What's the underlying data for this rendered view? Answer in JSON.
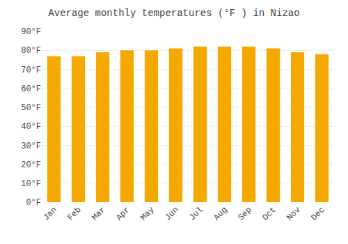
{
  "chart_data": {
    "type": "bar",
    "title": "Average monthly temperatures (°F ) in Nizao",
    "categories": [
      "Jan",
      "Feb",
      "Mar",
      "Apr",
      "May",
      "Jun",
      "Jul",
      "Aug",
      "Sep",
      "Oct",
      "Nov",
      "Dec"
    ],
    "values": [
      77,
      77,
      79,
      80,
      80,
      81,
      82,
      82,
      82,
      81,
      79,
      78
    ],
    "color": "#F5A800",
    "ylim": [
      0,
      90
    ],
    "yticks": [
      {
        "value": 0,
        "label": "0°F"
      },
      {
        "value": 10,
        "label": "10°F"
      },
      {
        "value": 20,
        "label": "20°F"
      },
      {
        "value": 30,
        "label": "30°F"
      },
      {
        "value": 40,
        "label": "40°F"
      },
      {
        "value": 50,
        "label": "50°F"
      },
      {
        "value": 60,
        "label": "60°F"
      },
      {
        "value": 70,
        "label": "70°F"
      },
      {
        "value": 80,
        "label": "80°F"
      },
      {
        "value": 90,
        "label": "90°F"
      }
    ],
    "grid": true
  }
}
